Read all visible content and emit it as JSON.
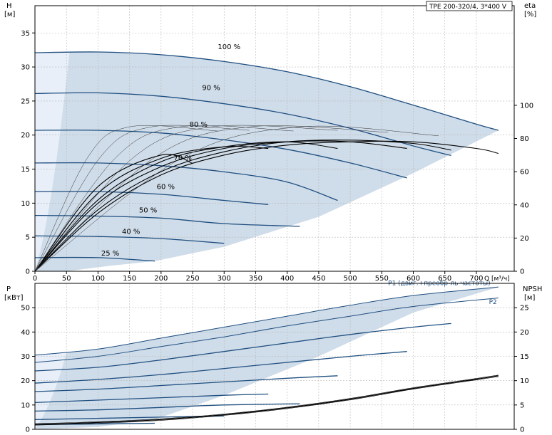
{
  "colors": {
    "envelope": "#cfdce9",
    "envelope_light": "#e8eff8",
    "curve": "#1f4f80",
    "eta": "#000000",
    "grid": "#b8b8b8",
    "frame": "#000000"
  },
  "chart_data": [
    {
      "type": "line",
      "title": "TPE 200-320/4, 3*400 V",
      "xlabel": "Q [м³/ч]",
      "ylabel_left": [
        "H",
        "[м]"
      ],
      "ylabel_right": [
        "eta",
        "[%]"
      ],
      "xlim": [
        0,
        760
      ],
      "ylim_left": [
        0,
        39
      ],
      "ylim_right": [
        0,
        160
      ],
      "grid": true,
      "xticks": [
        0,
        50,
        100,
        150,
        200,
        250,
        300,
        350,
        400,
        450,
        500,
        550,
        600,
        650,
        700
      ],
      "yticks_left": [
        0,
        5,
        10,
        15,
        20,
        25,
        30,
        35
      ],
      "yticks_right": [
        0,
        20,
        40,
        60,
        80,
        100
      ],
      "series": [
        {
          "name": "100 %",
          "x": [
            0,
            100,
            200,
            300,
            400,
            500,
            600,
            700,
            735
          ],
          "y": [
            32.1,
            32.2,
            31.8,
            30.8,
            29.3,
            27.1,
            24.4,
            21.6,
            20.7
          ]
        },
        {
          "name": "90 %",
          "x": [
            0,
            100,
            200,
            300,
            400,
            500,
            600,
            660
          ],
          "y": [
            26.1,
            26.2,
            25.7,
            24.6,
            23.1,
            21.0,
            18.4,
            17.0
          ]
        },
        {
          "name": "80 %",
          "x": [
            0,
            100,
            200,
            300,
            400,
            500,
            590
          ],
          "y": [
            20.7,
            20.7,
            20.3,
            19.3,
            17.9,
            15.9,
            13.7
          ]
        },
        {
          "name": "70 %",
          "x": [
            0,
            100,
            200,
            300,
            400,
            480
          ],
          "y": [
            15.9,
            15.9,
            15.5,
            14.6,
            13.1,
            10.4
          ]
        },
        {
          "name": "60 %",
          "x": [
            0,
            100,
            200,
            300,
            370
          ],
          "y": [
            11.7,
            11.7,
            11.3,
            10.4,
            9.8
          ]
        },
        {
          "name": "50 %",
          "x": [
            0,
            100,
            200,
            300,
            420
          ],
          "y": [
            8.2,
            8.1,
            7.8,
            7.0,
            6.6
          ]
        },
        {
          "name": "40 %",
          "x": [
            0,
            100,
            200,
            300
          ],
          "y": [
            5.2,
            5.1,
            4.8,
            4.1
          ]
        },
        {
          "name": "25 %",
          "x": [
            0,
            100,
            190
          ],
          "y": [
            2.0,
            2.0,
            1.5
          ]
        }
      ],
      "envelope": {
        "x": [
          0,
          40,
          100,
          200,
          300,
          400,
          500,
          600,
          700,
          735
        ],
        "y_max": [
          32.1,
          32.2,
          32.2,
          31.8,
          30.8,
          29.3,
          27.1,
          24.4,
          21.6,
          20.7
        ],
        "y_min_at_right": [
          {
            "q": 735,
            "h": 20.7
          },
          {
            "q": 190,
            "h": 1.5
          }
        ]
      },
      "eta_curves": [
        {
          "x": [
            0,
            100,
            200,
            300,
            400,
            500,
            600,
            700,
            735
          ],
          "eta": [
            0,
            35,
            58,
            70,
            76,
            78,
            78,
            74,
            71
          ]
        },
        {
          "x": [
            0,
            100,
            200,
            300,
            400,
            500,
            600,
            660
          ],
          "eta": [
            0,
            37,
            60,
            72,
            78,
            79,
            77,
            73
          ]
        },
        {
          "x": [
            0,
            100,
            200,
            300,
            400,
            500,
            590
          ],
          "eta": [
            0,
            41,
            63,
            74,
            78,
            78,
            74
          ]
        },
        {
          "x": [
            0,
            100,
            200,
            300,
            400,
            480
          ],
          "eta": [
            0,
            43,
            66,
            75,
            78,
            74
          ]
        },
        {
          "x": [
            0,
            100,
            200,
            300,
            370
          ],
          "eta": [
            0,
            47,
            68,
            75,
            74
          ]
        },
        {
          "x": [
            0,
            100,
            200,
            250
          ],
          "eta": [
            0,
            51,
            70,
            65
          ]
        }
      ],
      "curve_labels": [
        {
          "text": "100 %",
          "x": 290,
          "y": 32.6
        },
        {
          "text": "90 %",
          "x": 265,
          "y": 26.6
        },
        {
          "text": "80 %",
          "x": 245,
          "y": 21.2
        },
        {
          "text": "70 %",
          "x": 220,
          "y": 16.3
        },
        {
          "text": "60 %",
          "x": 193,
          "y": 12.1
        },
        {
          "text": "50 %",
          "x": 165,
          "y": 8.6
        },
        {
          "text": "40 %",
          "x": 138,
          "y": 5.5
        },
        {
          "text": "25 %",
          "x": 105,
          "y": 2.3
        }
      ]
    },
    {
      "type": "line",
      "ylabel_left": [
        "P",
        "[кВт]"
      ],
      "ylabel_right": [
        "NPSH",
        "[м]"
      ],
      "xlim": [
        0,
        760
      ],
      "ylim_left": [
        0,
        60
      ],
      "ylim_right": [
        0,
        30
      ],
      "yticks_left": [
        0,
        10,
        20,
        30,
        40,
        50
      ],
      "yticks_right": [
        0,
        5,
        10,
        15,
        20,
        25
      ],
      "grid": true,
      "series": [
        {
          "name": "P1 (двиг.+преобр-ль частоты)",
          "x": [
            0,
            100,
            200,
            300,
            400,
            500,
            600,
            735
          ],
          "y": [
            30.5,
            33.0,
            37.5,
            42.0,
            46.5,
            51.0,
            55.0,
            58.5
          ]
        },
        {
          "name": "P2",
          "x": [
            0,
            100,
            200,
            300,
            400,
            500,
            600,
            735
          ],
          "y": [
            27.5,
            30.0,
            34.0,
            38.0,
            42.5,
            46.5,
            50.5,
            54.0
          ]
        },
        {
          "x": [
            0,
            100,
            200,
            300,
            400,
            500,
            600,
            660
          ],
          "y": [
            24.0,
            25.5,
            28.5,
            32.0,
            35.5,
            39.0,
            42.0,
            43.5
          ]
        },
        {
          "x": [
            0,
            100,
            200,
            300,
            400,
            500,
            590
          ],
          "y": [
            19.0,
            20.5,
            22.5,
            25.0,
            27.5,
            30.0,
            32.0
          ]
        },
        {
          "x": [
            0,
            100,
            200,
            300,
            400,
            480
          ],
          "y": [
            15.5,
            16.5,
            18.0,
            19.5,
            21.0,
            22.0
          ]
        },
        {
          "x": [
            0,
            100,
            200,
            300,
            370
          ],
          "y": [
            11.0,
            12.0,
            13.0,
            14.0,
            14.5
          ]
        },
        {
          "x": [
            0,
            100,
            200,
            300,
            420
          ],
          "y": [
            7.5,
            8.0,
            9.0,
            10.0,
            10.5
          ]
        },
        {
          "x": [
            0,
            100,
            200,
            300
          ],
          "y": [
            4.0,
            4.5,
            5.0,
            5.5
          ]
        },
        {
          "x": [
            0,
            100,
            190
          ],
          "y": [
            2.0,
            2.2,
            2.5
          ]
        }
      ],
      "npsh": {
        "x": [
          0,
          100,
          200,
          300,
          400,
          500,
          600,
          700,
          735
        ],
        "y": [
          1.0,
          1.4,
          2.0,
          3.0,
          4.4,
          6.2,
          8.4,
          10.3,
          11.0
        ]
      },
      "labels": [
        {
          "text": "P1 (двиг.+преобр-ль частоты)",
          "x": 560,
          "y": 59.2
        },
        {
          "text": "P2",
          "x": 720,
          "y": 51.5
        }
      ]
    }
  ]
}
